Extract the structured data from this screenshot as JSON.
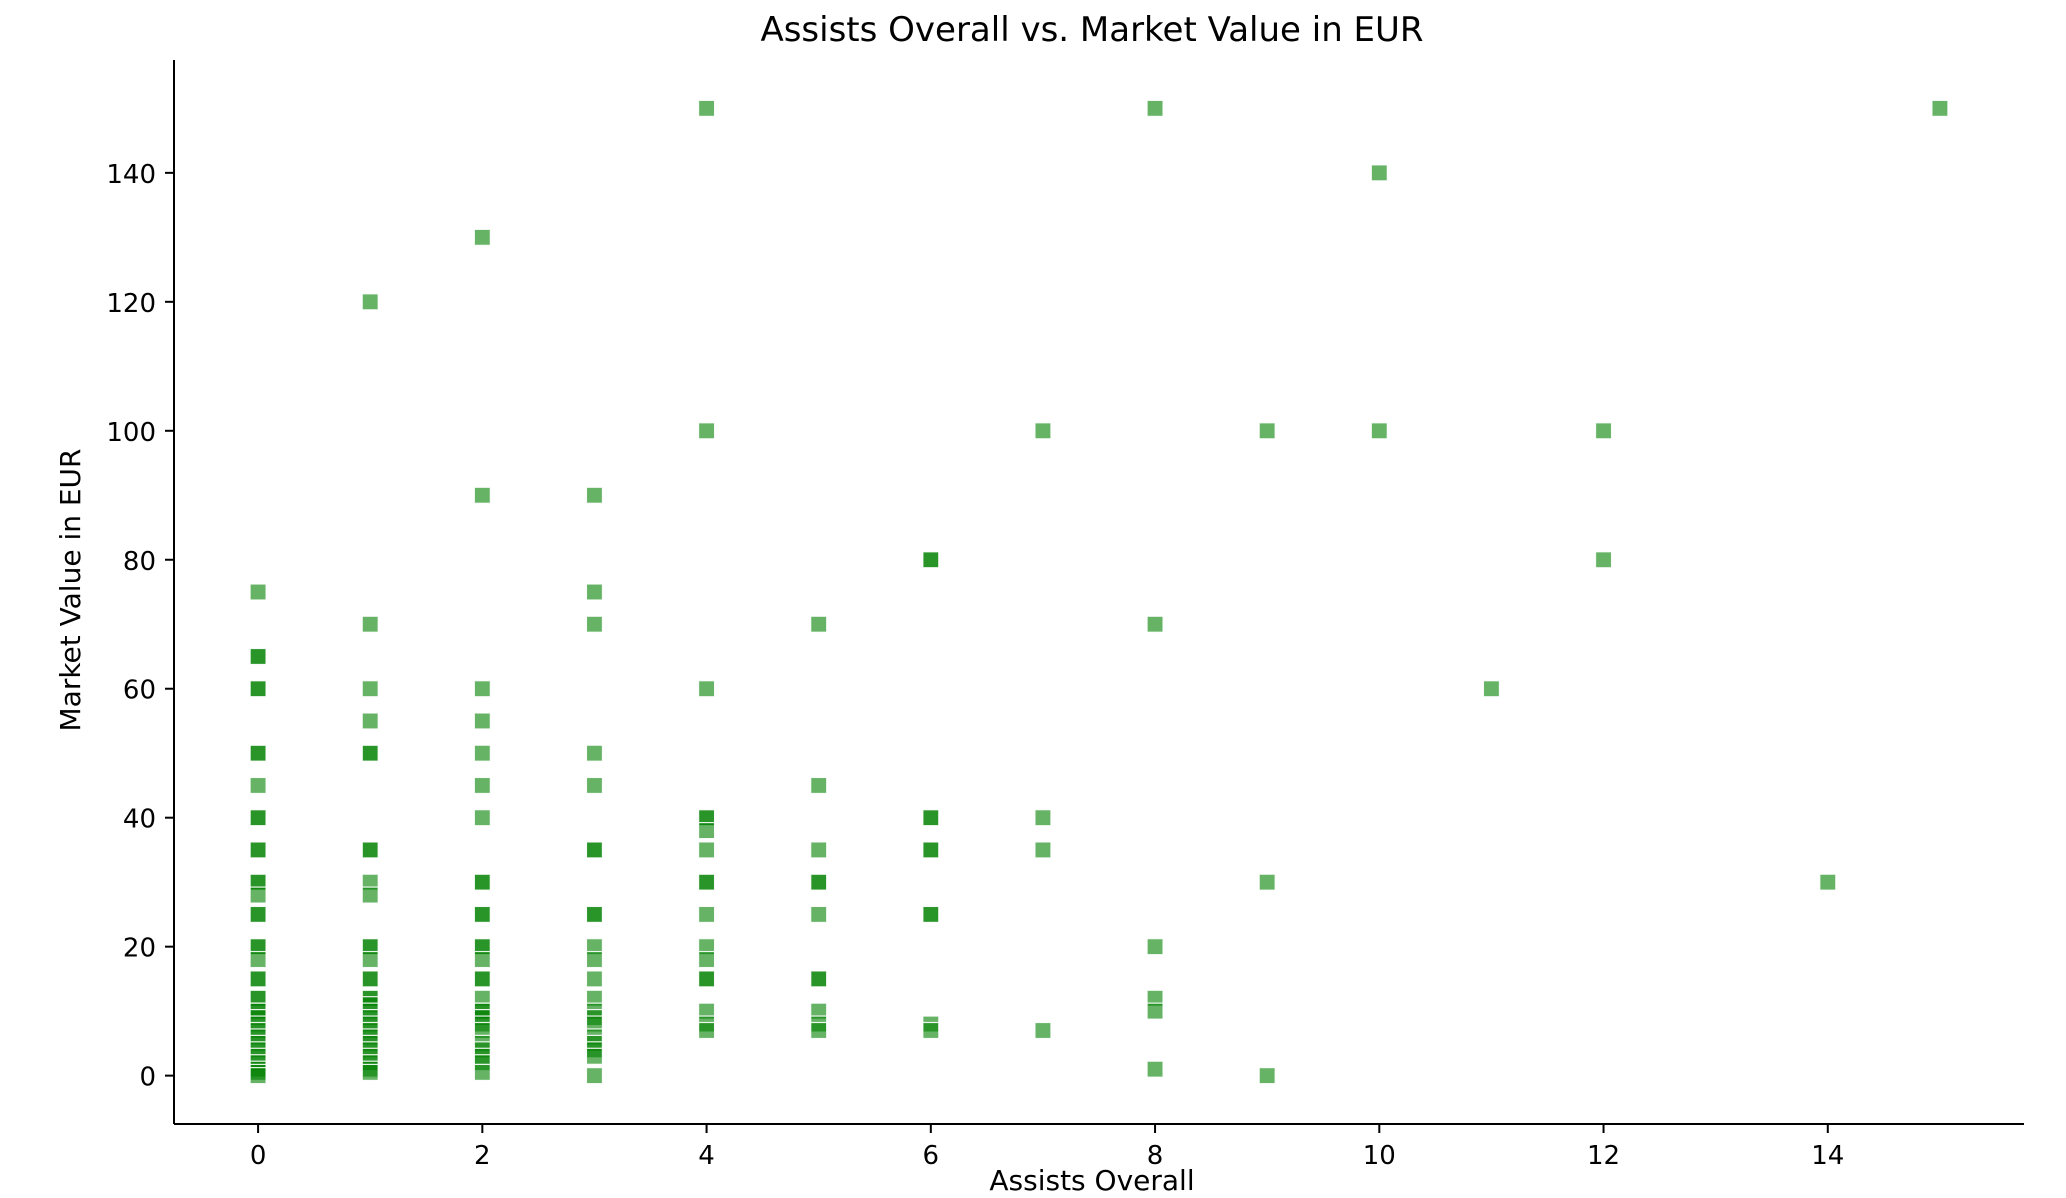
{
  "chart_data": {
    "type": "scatter",
    "title": "Assists Overall vs. Market Value in EUR",
    "xlabel": "Assists Overall",
    "ylabel": "Market Value in EUR",
    "xlim": [
      -0.75,
      15.75
    ],
    "ylim": [
      -7.5,
      157.5
    ],
    "xticks": [
      0,
      2,
      4,
      6,
      8,
      10,
      12,
      14
    ],
    "yticks": [
      0,
      20,
      40,
      60,
      80,
      100,
      120,
      140
    ],
    "grid": false,
    "marker": "square",
    "marker_color": "#008000",
    "marker_alpha": 0.6,
    "points": [
      [
        0,
        75
      ],
      [
        0,
        65
      ],
      [
        0,
        65
      ],
      [
        0,
        60
      ],
      [
        0,
        60
      ],
      [
        0,
        50
      ],
      [
        0,
        50
      ],
      [
        0,
        45
      ],
      [
        0,
        40
      ],
      [
        0,
        40
      ],
      [
        0,
        35
      ],
      [
        0,
        35
      ],
      [
        0,
        30
      ],
      [
        0,
        30
      ],
      [
        0,
        28
      ],
      [
        0,
        25
      ],
      [
        0,
        25
      ],
      [
        0,
        20
      ],
      [
        0,
        20
      ],
      [
        0,
        18
      ],
      [
        0,
        15
      ],
      [
        0,
        15
      ],
      [
        0,
        12
      ],
      [
        0,
        12
      ],
      [
        0,
        10
      ],
      [
        0,
        10
      ],
      [
        0,
        9
      ],
      [
        0,
        8
      ],
      [
        0,
        7
      ],
      [
        0,
        6
      ],
      [
        0,
        5
      ],
      [
        0,
        4
      ],
      [
        0,
        3
      ],
      [
        0,
        2
      ],
      [
        0,
        1
      ],
      [
        0,
        0.5
      ],
      [
        0,
        0
      ],
      [
        1,
        120
      ],
      [
        1,
        70
      ],
      [
        1,
        60
      ],
      [
        1,
        55
      ],
      [
        1,
        50
      ],
      [
        1,
        50
      ],
      [
        1,
        35
      ],
      [
        1,
        35
      ],
      [
        1,
        30
      ],
      [
        1,
        28
      ],
      [
        1,
        20
      ],
      [
        1,
        20
      ],
      [
        1,
        18
      ],
      [
        1,
        15
      ],
      [
        1,
        15
      ],
      [
        1,
        12
      ],
      [
        1,
        12
      ],
      [
        1,
        11
      ],
      [
        1,
        10
      ],
      [
        1,
        9
      ],
      [
        1,
        8
      ],
      [
        1,
        7
      ],
      [
        1,
        6
      ],
      [
        1,
        5
      ],
      [
        1,
        4
      ],
      [
        1,
        3
      ],
      [
        1,
        2
      ],
      [
        1,
        1
      ],
      [
        1,
        0.5
      ],
      [
        2,
        130
      ],
      [
        2,
        90
      ],
      [
        2,
        60
      ],
      [
        2,
        55
      ],
      [
        2,
        50
      ],
      [
        2,
        45
      ],
      [
        2,
        40
      ],
      [
        2,
        30
      ],
      [
        2,
        30
      ],
      [
        2,
        25
      ],
      [
        2,
        25
      ],
      [
        2,
        20
      ],
      [
        2,
        20
      ],
      [
        2,
        18
      ],
      [
        2,
        15
      ],
      [
        2,
        15
      ],
      [
        2,
        12
      ],
      [
        2,
        10
      ],
      [
        2,
        10
      ],
      [
        2,
        9
      ],
      [
        2,
        8
      ],
      [
        2,
        7
      ],
      [
        2,
        5
      ],
      [
        2,
        4
      ],
      [
        2,
        3
      ],
      [
        2,
        2
      ],
      [
        2,
        0.5
      ],
      [
        3,
        90
      ],
      [
        3,
        75
      ],
      [
        3,
        70
      ],
      [
        3,
        50
      ],
      [
        3,
        45
      ],
      [
        3,
        35
      ],
      [
        3,
        35
      ],
      [
        3,
        25
      ],
      [
        3,
        25
      ],
      [
        3,
        20
      ],
      [
        3,
        18
      ],
      [
        3,
        15
      ],
      [
        3,
        12
      ],
      [
        3,
        10
      ],
      [
        3,
        9
      ],
      [
        3,
        8
      ],
      [
        3,
        6
      ],
      [
        3,
        5
      ],
      [
        3,
        4
      ],
      [
        3,
        3
      ],
      [
        3,
        0
      ],
      [
        4,
        150
      ],
      [
        4,
        100
      ],
      [
        4,
        60
      ],
      [
        4,
        40
      ],
      [
        4,
        40
      ],
      [
        4,
        38
      ],
      [
        4,
        35
      ],
      [
        4,
        30
      ],
      [
        4,
        30
      ],
      [
        4,
        25
      ],
      [
        4,
        20
      ],
      [
        4,
        18
      ],
      [
        4,
        15
      ],
      [
        4,
        15
      ],
      [
        4,
        10
      ],
      [
        4,
        8
      ],
      [
        4,
        7
      ],
      [
        5,
        70
      ],
      [
        5,
        45
      ],
      [
        5,
        35
      ],
      [
        5,
        30
      ],
      [
        5,
        30
      ],
      [
        5,
        25
      ],
      [
        5,
        15
      ],
      [
        5,
        15
      ],
      [
        5,
        10
      ],
      [
        5,
        8
      ],
      [
        5,
        7
      ],
      [
        6,
        80
      ],
      [
        6,
        80
      ],
      [
        6,
        40
      ],
      [
        6,
        40
      ],
      [
        6,
        35
      ],
      [
        6,
        35
      ],
      [
        6,
        25
      ],
      [
        6,
        25
      ],
      [
        6,
        8
      ],
      [
        6,
        7
      ],
      [
        7,
        100
      ],
      [
        7,
        40
      ],
      [
        7,
        35
      ],
      [
        7,
        7
      ],
      [
        8,
        150
      ],
      [
        8,
        70
      ],
      [
        8,
        20
      ],
      [
        8,
        12
      ],
      [
        8,
        10
      ],
      [
        8,
        1
      ],
      [
        9,
        100
      ],
      [
        9,
        30
      ],
      [
        9,
        0
      ],
      [
        10,
        140
      ],
      [
        10,
        100
      ],
      [
        11,
        60
      ],
      [
        12,
        100
      ],
      [
        12,
        80
      ],
      [
        14,
        30
      ],
      [
        15,
        150
      ]
    ]
  }
}
